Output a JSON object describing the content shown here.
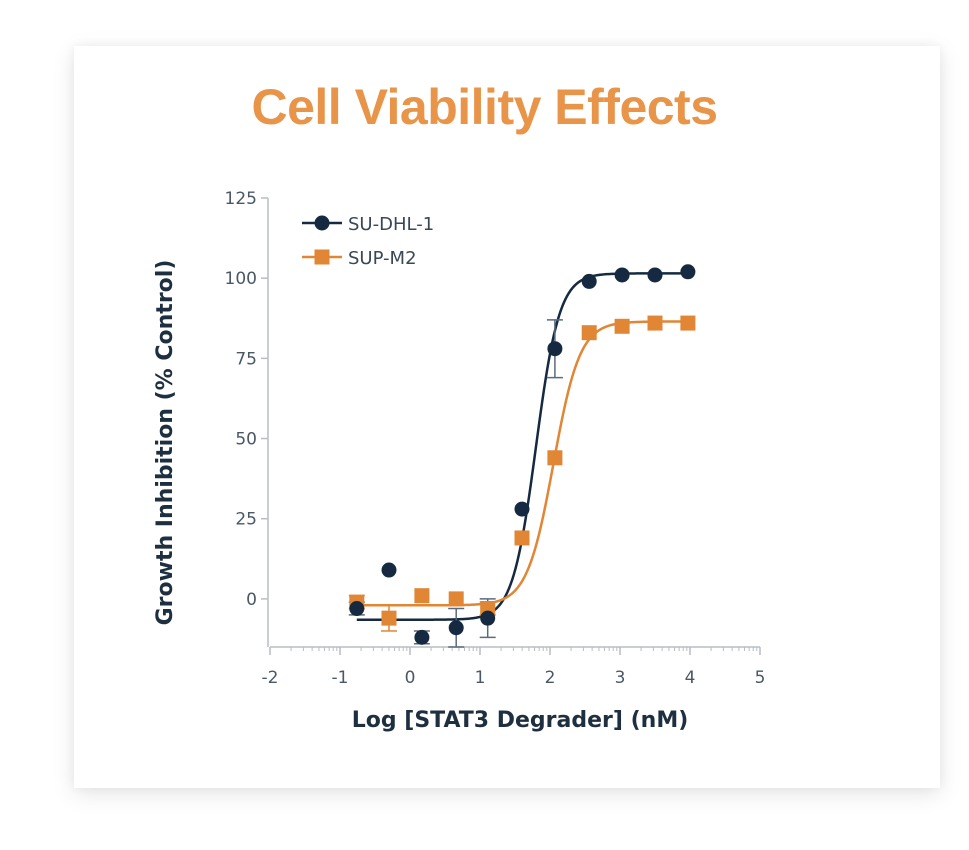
{
  "chart_data": {
    "type": "scatter",
    "title": "Cell Viability Effects",
    "xlabel": "Log [STAT3 Degrader] (nM)",
    "ylabel": "Growth Inhibition (% Control)",
    "xlim": [
      -2,
      5
    ],
    "ylim": [
      -15,
      125
    ],
    "xticks": [
      -2,
      -1,
      0,
      1,
      2,
      3,
      4,
      5
    ],
    "yticks": [
      0,
      25,
      50,
      75,
      100,
      125
    ],
    "grid": false,
    "legend_position": "top-left",
    "x": [
      -0.76,
      -0.3,
      0.17,
      0.66,
      1.11,
      1.6,
      2.07,
      2.56,
      3.03,
      3.5,
      3.97
    ],
    "series": [
      {
        "name": "SU-DHL-1",
        "marker": "circle",
        "color": "#152a40",
        "values": [
          -3,
          9,
          -12,
          -9,
          -6,
          28,
          78,
          99,
          101,
          101,
          102
        ],
        "errors": [
          2,
          0,
          2,
          6,
          6,
          0,
          9,
          0,
          0,
          0,
          0
        ],
        "fit": {
          "bottom": -6.5,
          "top": 101.5,
          "logIC50": 1.8,
          "hill": 2.6
        }
      },
      {
        "name": "SUP-M2",
        "marker": "square",
        "color": "#e08634",
        "values": [
          -1,
          -6,
          1,
          0,
          -3,
          19,
          44,
          83,
          85,
          86,
          86
        ],
        "errors": [
          2,
          4,
          0,
          0,
          2,
          0,
          0,
          0,
          0,
          0,
          0
        ],
        "fit": {
          "bottom": -2,
          "top": 86.5,
          "logIC50": 2.05,
          "hill": 2.3
        }
      }
    ]
  }
}
